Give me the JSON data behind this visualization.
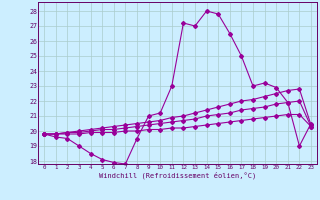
{
  "bg_color": "#cceeff",
  "grid_color": "#aacccc",
  "line_color": "#990099",
  "xlim": [
    -0.5,
    23.5
  ],
  "ylim": [
    17.8,
    28.6
  ],
  "yticks": [
    18,
    19,
    20,
    21,
    22,
    23,
    24,
    25,
    26,
    27,
    28
  ],
  "xticks": [
    0,
    1,
    2,
    3,
    4,
    5,
    6,
    7,
    8,
    9,
    10,
    11,
    12,
    13,
    14,
    15,
    16,
    17,
    18,
    19,
    20,
    21,
    22,
    23
  ],
  "xlabel": "Windchill (Refroidissement éolien,°C)",
  "series1_x": [
    0,
    1,
    2,
    3,
    4,
    5,
    6,
    7,
    8,
    9,
    10,
    11,
    12,
    13,
    14,
    15,
    16,
    17,
    18,
    19,
    20,
    21,
    22,
    23
  ],
  "series1_y": [
    19.8,
    19.6,
    19.5,
    19.0,
    18.5,
    18.1,
    17.9,
    17.8,
    19.5,
    21.0,
    21.2,
    23.0,
    27.2,
    27.0,
    28.0,
    27.8,
    26.5,
    25.0,
    23.0,
    23.2,
    22.9,
    21.9,
    19.0,
    20.5
  ],
  "series2_x": [
    0,
    1,
    2,
    3,
    4,
    5,
    6,
    7,
    8,
    9,
    10,
    11,
    12,
    13,
    14,
    15,
    16,
    17,
    18,
    19,
    20,
    21,
    22,
    23
  ],
  "series2_y": [
    19.8,
    19.8,
    19.9,
    20.0,
    20.1,
    20.2,
    20.3,
    20.4,
    20.5,
    20.6,
    20.7,
    20.9,
    21.0,
    21.2,
    21.4,
    21.6,
    21.8,
    22.0,
    22.1,
    22.3,
    22.5,
    22.7,
    22.8,
    20.4
  ],
  "series3_x": [
    0,
    1,
    2,
    3,
    4,
    5,
    6,
    7,
    8,
    9,
    10,
    11,
    12,
    13,
    14,
    15,
    16,
    17,
    18,
    19,
    20,
    21,
    22,
    23
  ],
  "series3_y": [
    19.8,
    19.8,
    19.9,
    19.9,
    20.0,
    20.1,
    20.1,
    20.2,
    20.3,
    20.4,
    20.5,
    20.6,
    20.7,
    20.8,
    21.0,
    21.1,
    21.2,
    21.4,
    21.5,
    21.6,
    21.8,
    21.9,
    22.0,
    20.3
  ],
  "series4_x": [
    0,
    1,
    2,
    3,
    4,
    5,
    6,
    7,
    8,
    9,
    10,
    11,
    12,
    13,
    14,
    15,
    16,
    17,
    18,
    19,
    20,
    21,
    22,
    23
  ],
  "series4_y": [
    19.8,
    19.8,
    19.8,
    19.8,
    19.9,
    19.9,
    19.9,
    20.0,
    20.0,
    20.1,
    20.1,
    20.2,
    20.2,
    20.3,
    20.4,
    20.5,
    20.6,
    20.7,
    20.8,
    20.9,
    21.0,
    21.1,
    21.1,
    20.3
  ]
}
